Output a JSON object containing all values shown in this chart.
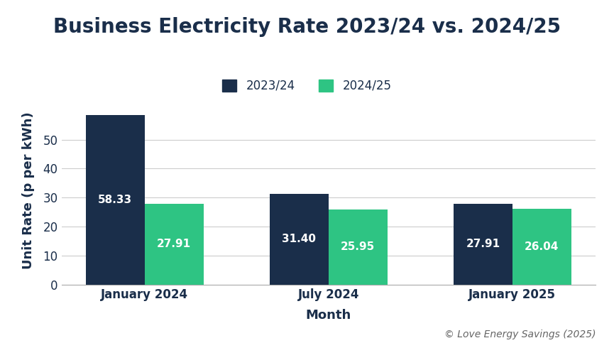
{
  "title": "Business Electricity Rate 2023/24 vs. 2024/25",
  "xlabel": "Month",
  "ylabel": "Unit Rate (p per kWh)",
  "categories": [
    "January 2024",
    "July 2024",
    "January 2025"
  ],
  "series": [
    {
      "label": "2023/24",
      "values": [
        58.33,
        31.4,
        27.91
      ],
      "color": "#1a2e4a"
    },
    {
      "label": "2024/25",
      "values": [
        27.91,
        25.95,
        26.04
      ],
      "color": "#2ec483"
    }
  ],
  "ylim": [
    0,
    65
  ],
  "yticks": [
    0,
    10,
    20,
    30,
    40,
    50
  ],
  "bar_width": 0.32,
  "background_color": "#ffffff",
  "grid_color": "#cccccc",
  "title_color": "#1a2e4a",
  "axis_label_color": "#1a2e4a",
  "tick_label_color": "#1a2e4a",
  "bar_label_color": "#ffffff",
  "copyright_text": "© Love Energy Savings (2025)",
  "title_fontsize": 20,
  "axis_label_fontsize": 13,
  "tick_fontsize": 12,
  "bar_label_fontsize": 11,
  "legend_fontsize": 12,
  "copyright_fontsize": 10
}
